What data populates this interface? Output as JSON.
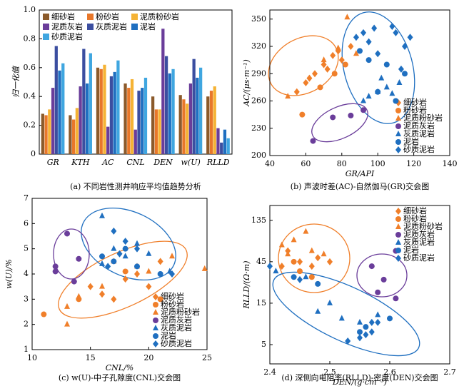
{
  "chart_data": [
    {
      "type": "bar",
      "ylabel": "归一化值",
      "categories": [
        "GR",
        "KTH",
        "AC",
        "CNL",
        "DEN",
        "w(U)",
        "RLLD"
      ],
      "ylim": [
        0,
        1
      ],
      "yticks": [
        0,
        0.2,
        0.4,
        0.6,
        0.8,
        {
          "value": 1,
          "label": "1.0"
        }
      ],
      "caption": "(a) 不同岩性测井响应平均值趋势分析",
      "series": [
        {
          "name": "细砂岩",
          "color": "#8b5a2b",
          "values": [
            0.28,
            0.27,
            0.6,
            0.49,
            0.4,
            0.41,
            0.4
          ]
        },
        {
          "name": "粉砂岩",
          "color": "#e8772a",
          "values": [
            0.27,
            0.24,
            0.59,
            0.46,
            0.31,
            0.38,
            0.44
          ]
        },
        {
          "name": "泥质粉砂岩",
          "color": "#f5b335",
          "values": [
            0.31,
            0.32,
            0.62,
            0.52,
            0.31,
            0.35,
            0.47
          ]
        },
        {
          "name": "泥质灰岩",
          "color": "#6a3d9a",
          "values": [
            0.46,
            0.47,
            0.19,
            0.17,
            0.87,
            0.49,
            0.18
          ]
        },
        {
          "name": "灰质泥岩",
          "color": "#3b4ea0",
          "values": [
            0.75,
            0.73,
            0.54,
            0.44,
            0.68,
            0.66,
            0.08
          ]
        },
        {
          "name": "泥岩",
          "color": "#1f6fc0",
          "values": [
            0.58,
            0.49,
            0.57,
            0.46,
            0.56,
            0.53,
            0.17
          ]
        },
        {
          "name": "砂质泥岩",
          "color": "#3fa6e0",
          "values": [
            0.63,
            0.7,
            0.65,
            0.53,
            0.59,
            0.6,
            0.11
          ]
        }
      ]
    },
    {
      "type": "scatter",
      "xlabel": "GR/API",
      "ylabel": "AC/(μs·m⁻¹)",
      "xlim": [
        40,
        140
      ],
      "xticks": [
        40,
        60,
        80,
        100,
        120,
        140
      ],
      "ylim": [
        200,
        360
      ],
      "yticks": [
        200,
        230,
        260,
        290,
        320,
        350
      ],
      "caption": "(b) 声波时差(AC)-自然伽马(GR)交会图",
      "legend": "lower right",
      "series": [
        {
          "name": "细砂岩",
          "color": "#f07f2a",
          "marker": "diamond",
          "x": [
            55,
            60,
            65,
            70,
            75,
            78,
            80,
            85,
            72,
            62
          ],
          "values": [
            270,
            280,
            290,
            300,
            310,
            315,
            305,
            320,
            295,
            285
          ]
        },
        {
          "name": "粉砂岩",
          "color": "#f07f2a",
          "marker": "circle",
          "x": [
            58,
            68,
            82,
            76
          ],
          "values": [
            245,
            275,
            300,
            290
          ]
        },
        {
          "name": "泥质粉砂岩",
          "color": "#f07f2a",
          "marker": "triangle",
          "x": [
            50,
            83,
            70,
            78,
            88
          ],
          "values": [
            265,
            352,
            305,
            318,
            312
          ]
        },
        {
          "name": "泥质灰岩",
          "color": "#6a3d9a",
          "marker": "circle",
          "x": [
            64,
            75,
            85,
            92
          ],
          "values": [
            216,
            242,
            244,
            250
          ]
        },
        {
          "name": "灰质泥岩",
          "color": "#1f6fc0",
          "marker": "triangle",
          "x": [
            95,
            100,
            105,
            108,
            112,
            92,
            102
          ],
          "values": [
            265,
            270,
            275,
            268,
            280,
            260,
            285
          ]
        },
        {
          "name": "泥岩",
          "color": "#1f6fc0",
          "marker": "circle",
          "x": [
            90,
            95,
            100,
            110,
            115,
            105
          ],
          "values": [
            315,
            305,
            270,
            260,
            290,
            300
          ]
        },
        {
          "name": "砂质泥岩",
          "color": "#1f6fc0",
          "marker": "diamond",
          "x": [
            88,
            92,
            95,
            98,
            108,
            110,
            118,
            100,
            113,
            115
          ],
          "values": [
            330,
            335,
            325,
            340,
            342,
            335,
            330,
            312,
            295,
            320
          ]
        }
      ]
    },
    {
      "type": "scatter",
      "xlabel": "CNL/%",
      "ylabel": "w(U)/%",
      "xlim": [
        10,
        25
      ],
      "xticks": [
        10,
        15,
        20,
        25
      ],
      "ylim": [
        1,
        7
      ],
      "yticks": [
        1,
        2,
        3,
        4,
        5,
        6,
        7
      ],
      "caption": "(c) w(U)-中子孔隙度(CNL)交会图",
      "legend": "lower right",
      "series": [
        {
          "name": "细砂岩",
          "color": "#f07f2a",
          "marker": "diamond",
          "x": [
            15,
            17,
            18,
            19,
            20,
            21,
            16
          ],
          "values": [
            3.5,
            3.0,
            3.8,
            4.0,
            3.5,
            4.5,
            3.2
          ]
        },
        {
          "name": "粉砂岩",
          "color": "#f07f2a",
          "marker": "circle",
          "x": [
            11,
            14,
            18,
            21
          ],
          "values": [
            2.4,
            3.0,
            4.1,
            3.0
          ]
        },
        {
          "name": "泥质粉砂岩",
          "color": "#f07f2a",
          "marker": "triangle",
          "x": [
            13,
            14,
            16,
            17,
            19,
            20,
            22,
            24.8,
            13
          ],
          "values": [
            2.0,
            3.1,
            3.5,
            4.5,
            4.3,
            4.1,
            4.7,
            4.2,
            2.7
          ]
        },
        {
          "name": "泥质灰岩",
          "color": "#6a3d9a",
          "marker": "circle",
          "x": [
            12,
            12,
            13,
            13.6,
            14
          ],
          "values": [
            4.1,
            4.3,
            5.6,
            3.7,
            4.6
          ]
        },
        {
          "name": "灰质泥岩",
          "color": "#1f6fc0",
          "marker": "triangle",
          "x": [
            16,
            16,
            17,
            18,
            19,
            20,
            21.8
          ],
          "values": [
            6.3,
            4.4,
            5.0,
            4.7,
            5.2,
            4.8,
            4.1
          ]
        },
        {
          "name": "泥岩",
          "color": "#1f6fc0",
          "marker": "circle",
          "x": [
            16,
            17,
            18,
            19,
            21
          ],
          "values": [
            4.7,
            4.5,
            5.0,
            4.3,
            4.0
          ]
        },
        {
          "name": "砂质泥岩",
          "color": "#1f6fc0",
          "marker": "diamond",
          "x": [
            17,
            18,
            16.5,
            19,
            22,
            17.5
          ],
          "values": [
            5.7,
            5.3,
            4.3,
            5.0,
            4.0,
            4.8
          ]
        }
      ]
    },
    {
      "type": "scatter",
      "xlabel": "DEN/(g·cm⁻³)",
      "ylabel": "RLLD/(Ω·m)",
      "xlim": [
        2.4,
        2.7
      ],
      "xticks": [
        2.4,
        2.5,
        2.6,
        2.7
      ],
      "ylim": [
        3,
        200
      ],
      "yticks": [
        5,
        15,
        45,
        135
      ],
      "log_y": true,
      "caption": "(d) 深侧向电阻率(RLLD)-密度(DEN)交会图",
      "legend": "upper right",
      "series": [
        {
          "name": "细砂岩",
          "color": "#f07f2a",
          "marker": "diamond",
          "x": [
            2.43,
            2.45,
            2.47,
            2.48,
            2.42,
            2.5
          ],
          "values": [
            60,
            45,
            40,
            50,
            40,
            45
          ]
        },
        {
          "name": "粉砂岩",
          "color": "#f07f2a",
          "marker": "circle",
          "x": [
            2.45,
            2.47,
            2.44
          ],
          "values": [
            35,
            30,
            45
          ]
        },
        {
          "name": "泥质粉砂岩",
          "color": "#f07f2a",
          "marker": "triangle",
          "x": [
            2.42,
            2.44,
            2.46,
            2.47,
            2.49,
            2.43
          ],
          "values": [
            70,
            80,
            100,
            60,
            55,
            55
          ]
        },
        {
          "name": "泥质灰岩",
          "color": "#6a3d9a",
          "marker": "circle",
          "x": [
            2.57,
            2.58,
            2.59,
            2.61,
            2.61
          ],
          "values": [
            40,
            20,
            28,
            17,
            60
          ]
        },
        {
          "name": "灰质泥岩",
          "color": "#1f6fc0",
          "marker": "triangle",
          "x": [
            2.48,
            2.52,
            2.55,
            2.58,
            2.5,
            2.41,
            2.46
          ],
          "values": [
            12,
            10,
            9,
            11,
            15,
            35,
            30
          ]
        },
        {
          "name": "泥岩",
          "color": "#1f6fc0",
          "marker": "circle",
          "x": [
            2.44,
            2.48,
            2.55,
            2.6,
            2.56
          ],
          "values": [
            30,
            25,
            7,
            10,
            8
          ]
        },
        {
          "name": "砂质泥岩",
          "color": "#1f6fc0",
          "marker": "diamond",
          "x": [
            2.4,
            2.45,
            2.55,
            2.56,
            2.57,
            2.58,
            2.53,
            2.57
          ],
          "values": [
            40,
            28,
            6,
            6.5,
            7,
            9,
            5.5,
            9
          ]
        }
      ]
    }
  ]
}
